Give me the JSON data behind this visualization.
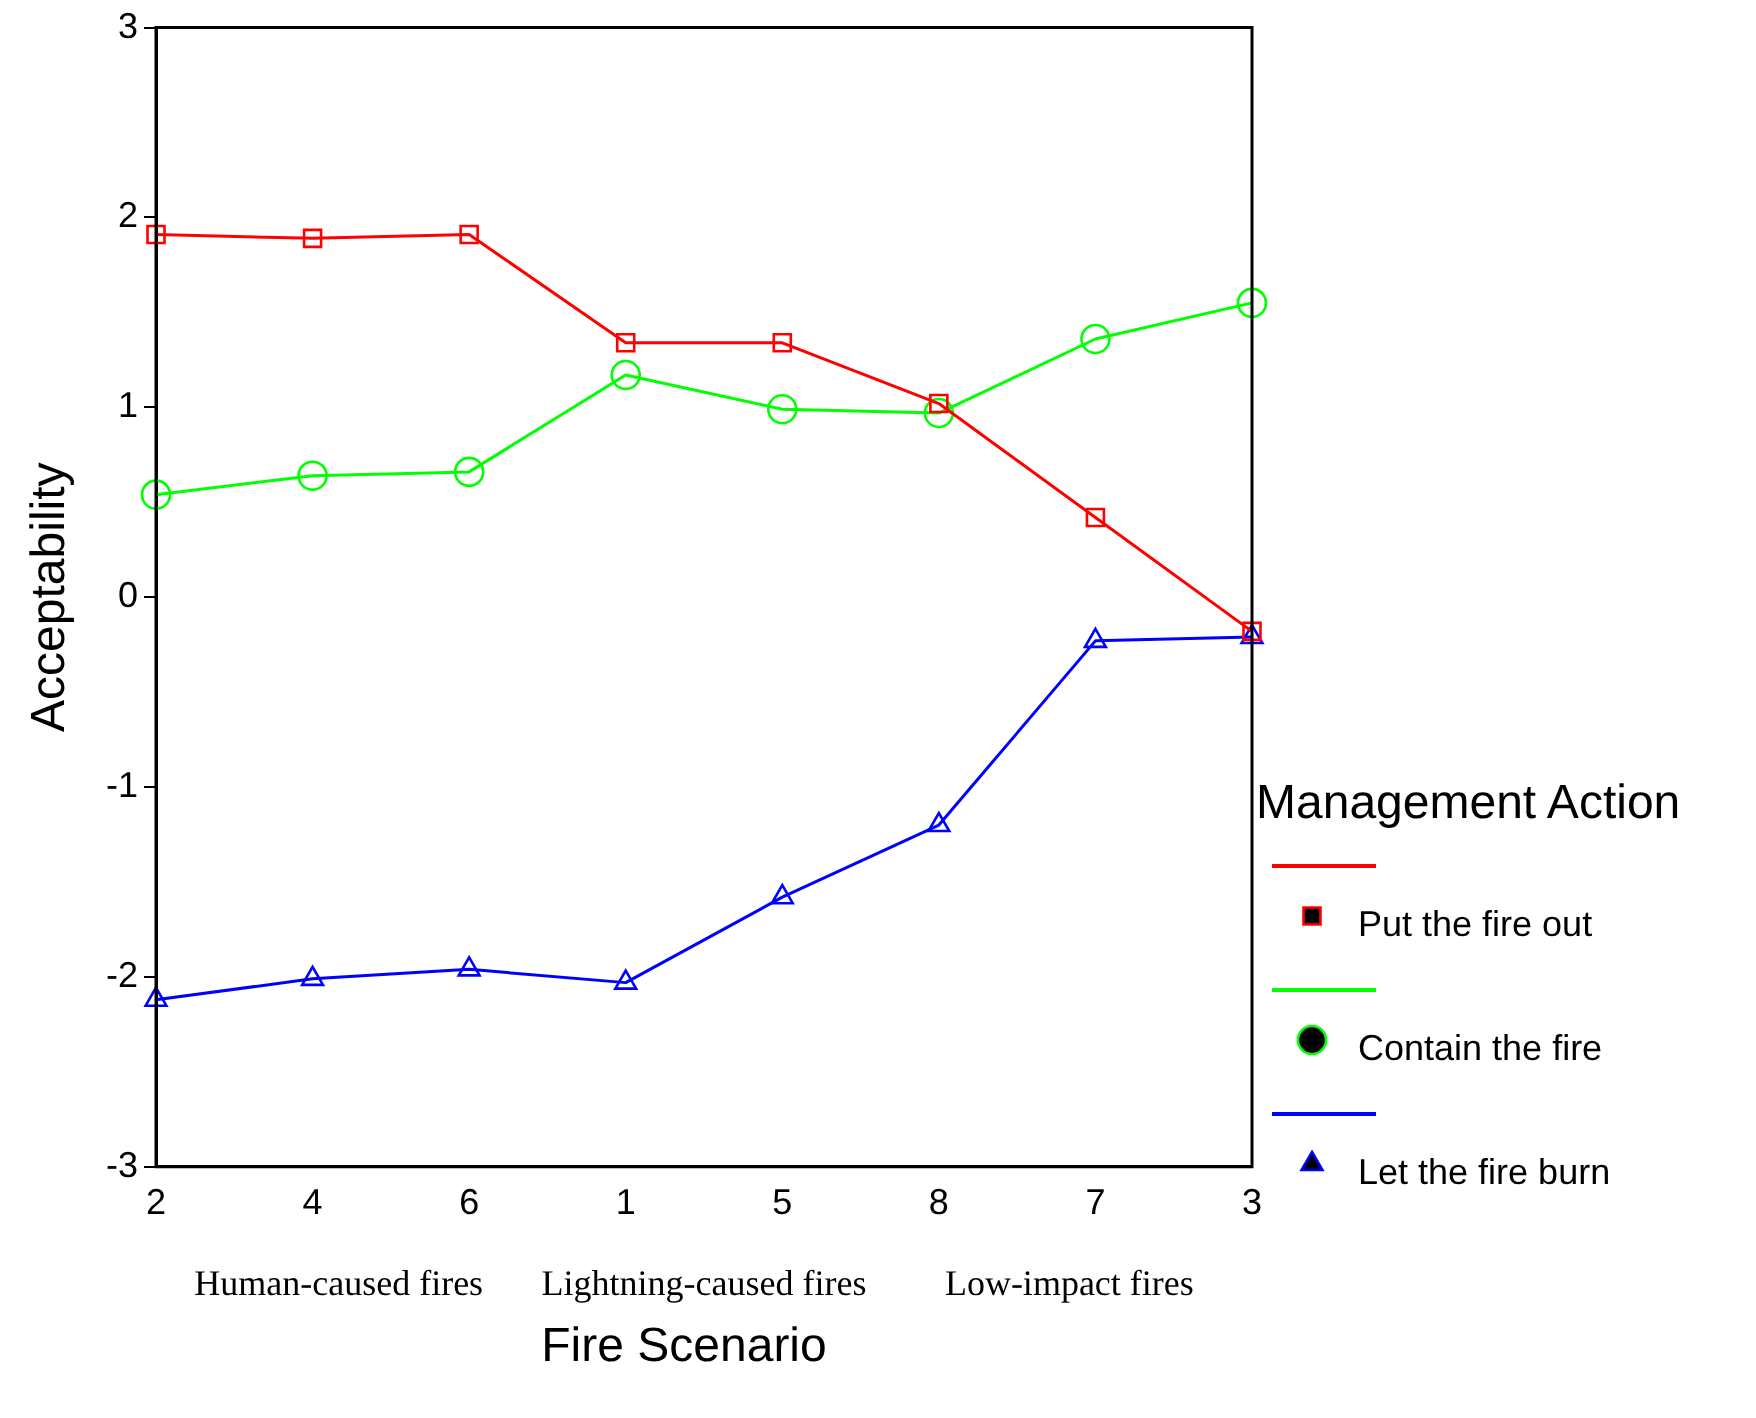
{
  "chart_data": {
    "type": "line",
    "xlabel": "Fire Scenario",
    "ylabel": "Acceptability",
    "legend_title": "Management Action",
    "categories": [
      "2",
      "4",
      "6",
      "1",
      "5",
      "8",
      "7",
      "3"
    ],
    "series": [
      {
        "name": "Put the fire out",
        "color": "#ff0000",
        "marker": "square",
        "values": [
          1.91,
          1.89,
          1.91,
          1.34,
          1.34,
          1.02,
          0.42,
          -0.18
        ]
      },
      {
        "name": "Contain the fire",
        "color": "#00ff00",
        "marker": "circle",
        "values": [
          0.54,
          0.64,
          0.66,
          1.17,
          0.99,
          0.97,
          1.36,
          1.55
        ]
      },
      {
        "name": "Let the fire burn",
        "color": "#0000ff",
        "marker": "triangle",
        "values": [
          -2.12,
          -2.01,
          -1.96,
          -2.03,
          -1.58,
          -1.2,
          -0.23,
          -0.21
        ]
      }
    ],
    "ylim": [
      -3,
      3
    ],
    "yticks": [
      -3,
      -2,
      -1,
      0,
      1,
      2,
      3
    ],
    "grid": false,
    "legend": "right",
    "line_style": "solid",
    "annotations": [
      "Human-caused fires",
      "Lightning-caused fires",
      "Low-impact fires"
    ]
  }
}
